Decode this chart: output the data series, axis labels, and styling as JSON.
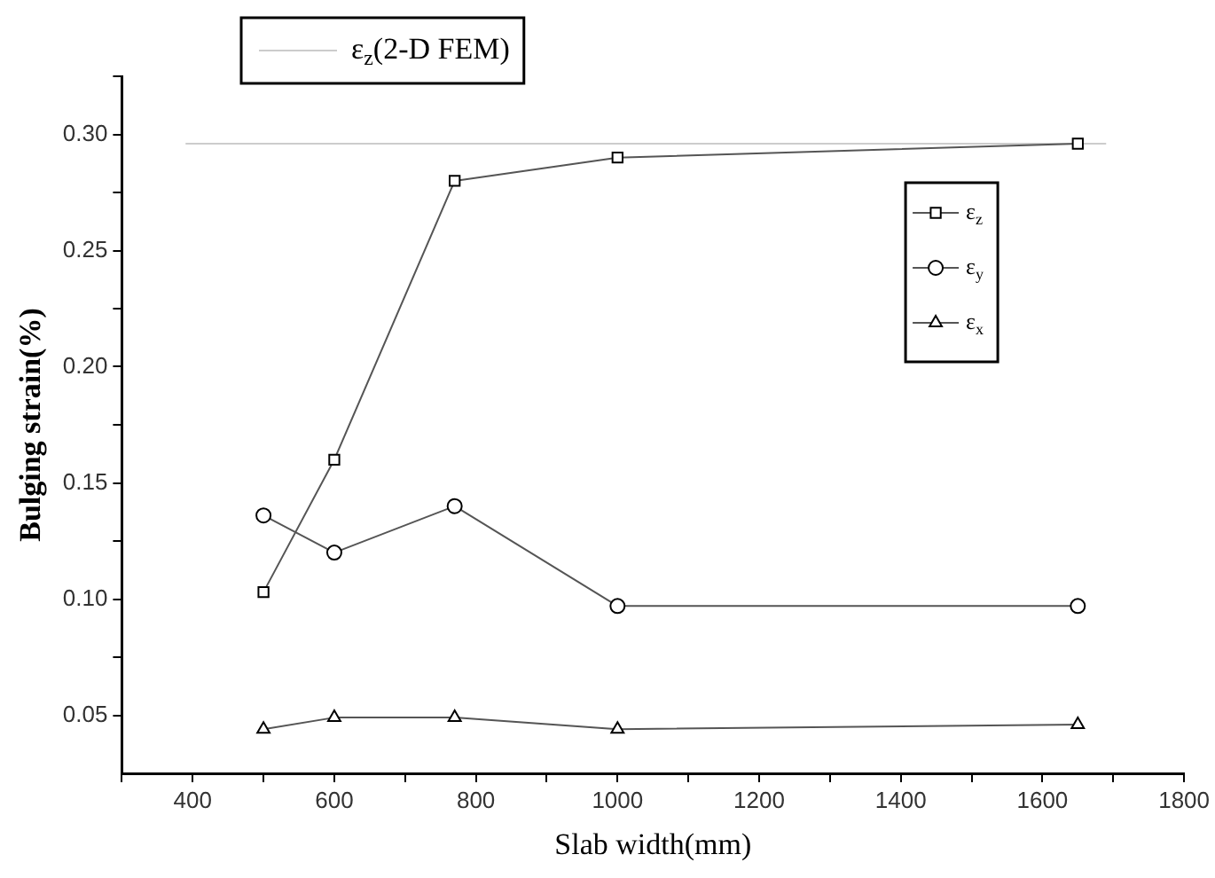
{
  "chart_data": {
    "type": "line",
    "xlabel": "Slab width(mm)",
    "ylabel": "Bulging strain(%)",
    "x": [
      500,
      600,
      770,
      1000,
      1650
    ],
    "series": [
      {
        "name": "ε$_{z}$",
        "color": "#555555",
        "marker": "square",
        "values": [
          0.103,
          0.16,
          0.28,
          0.29,
          0.296
        ]
      },
      {
        "name": "ε$_{y}$",
        "color": "#555555",
        "marker": "circle",
        "values": [
          0.136,
          0.12,
          0.14,
          0.097,
          0.097
        ]
      },
      {
        "name": "ε$_{x}$",
        "color": "#555555",
        "marker": "triangle",
        "values": [
          0.044,
          0.049,
          0.049,
          0.044,
          0.046
        ]
      },
      {
        "name": "ε$_{z}$(2-D FEM)",
        "color": "#cccccc",
        "marker": "none",
        "x": [
          390,
          1690
        ],
        "values": [
          0.296,
          0.296
        ]
      }
    ],
    "xlim": [
      300,
      1800
    ],
    "xticks": [
      {
        "value": 300,
        "label": null
      },
      400,
      {
        "value": 500,
        "label": null
      },
      600,
      {
        "value": 700,
        "label": null
      },
      800,
      {
        "value": 900,
        "label": null
      },
      1000,
      {
        "value": 1100,
        "label": null
      },
      1200,
      {
        "value": 1300,
        "label": null
      },
      1400,
      {
        "value": 1500,
        "label": null
      },
      1600,
      {
        "value": 1700,
        "label": null
      },
      1800
    ],
    "ylim": [
      0.025,
      0.325
    ],
    "yticks": [
      {
        "value": 0.05,
        "label": "0.05"
      },
      {
        "value": 0.075,
        "label": null
      },
      {
        "value": 0.1,
        "label": "0.10"
      },
      {
        "value": 0.125,
        "label": null
      },
      {
        "value": 0.15,
        "label": "0.15"
      },
      {
        "value": 0.175,
        "label": null
      },
      {
        "value": 0.2,
        "label": "0.20"
      },
      {
        "value": 0.225,
        "label": null
      },
      {
        "value": 0.25,
        "label": "0.25"
      },
      {
        "value": 0.275,
        "label": null
      },
      {
        "value": 0.3,
        "label": "0.30"
      },
      {
        "value": 0.325,
        "label": null
      }
    ],
    "grid": false,
    "legend": "top right"
  }
}
